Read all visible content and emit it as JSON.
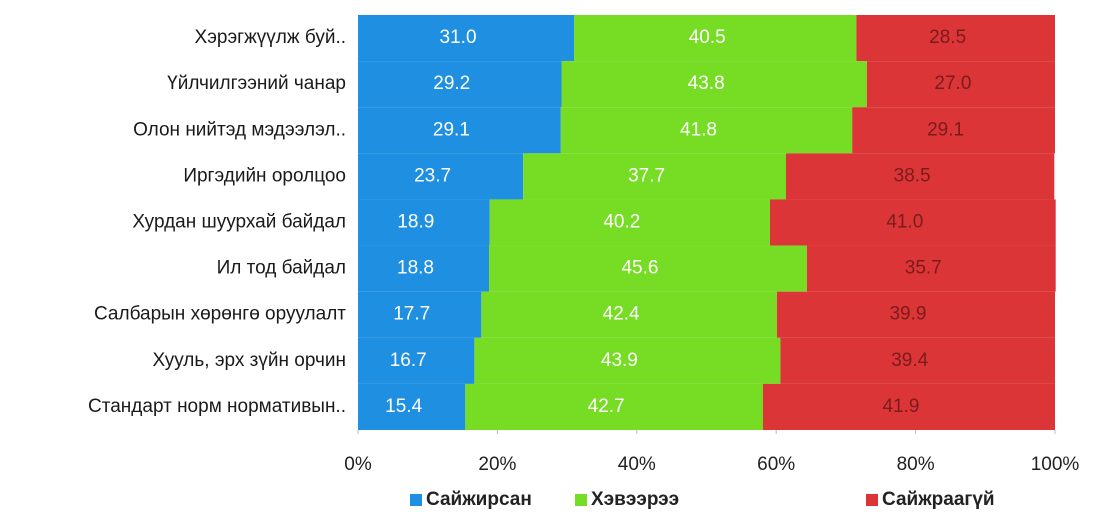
{
  "chart_data": {
    "type": "bar",
    "orientation": "horizontal",
    "stacked": true,
    "categories": [
      "Хэрэгжүүлж буй..",
      "Үйлчилгээний чанар",
      "Олон нийтэд мэдээлэл..",
      "Иргэдийн оролцоо",
      "Хурдан шуурхай байдал",
      "Ил тод байдал",
      "Салбарын хөрөнгө оруулалт",
      "Хууль, эрх зүйн орчин",
      "Стандарт норм нормативын.."
    ],
    "series": [
      {
        "name": "Сайжирсан",
        "color": "#1e8fe1",
        "label_color": "#ffffff",
        "values": [
          31.0,
          29.2,
          29.1,
          23.7,
          18.9,
          18.8,
          17.7,
          16.7,
          15.4
        ],
        "value_labels": [
          "31.0",
          "29.2",
          "29.1",
          "23.7",
          "18.9",
          "18.8",
          "17.7",
          "16.7",
          "15.4"
        ]
      },
      {
        "name": "Хэвээрээ",
        "color": "#76dc24",
        "label_color": "#ffffff",
        "values": [
          40.5,
          43.8,
          41.8,
          37.7,
          40.2,
          45.6,
          42.4,
          43.9,
          42.7
        ],
        "value_labels": [
          "40.5",
          "43.8",
          "41.8",
          "37.7",
          "40.2",
          "45.6",
          "42.4",
          "43.9",
          "42.7"
        ]
      },
      {
        "name": "Сайжраагүй",
        "color": "#dc3538",
        "label_color": "#7a1c1c",
        "values": [
          28.5,
          27.0,
          29.1,
          38.5,
          41.0,
          35.7,
          39.9,
          39.4,
          41.9
        ],
        "value_labels": [
          "28.5",
          "27.0",
          "29.1",
          "38.5",
          "41.0",
          "35.7",
          "39.9",
          "39.4",
          "41.9"
        ]
      }
    ],
    "xlim": [
      0,
      100
    ],
    "xticks": [
      {
        "value": 0,
        "label": "0%"
      },
      {
        "value": 20,
        "label": "20%"
      },
      {
        "value": 40,
        "label": "40%"
      },
      {
        "value": 60,
        "label": "60%"
      },
      {
        "value": 80,
        "label": "80%"
      },
      {
        "value": 100,
        "label": "100%"
      }
    ],
    "legend": "bottom"
  }
}
